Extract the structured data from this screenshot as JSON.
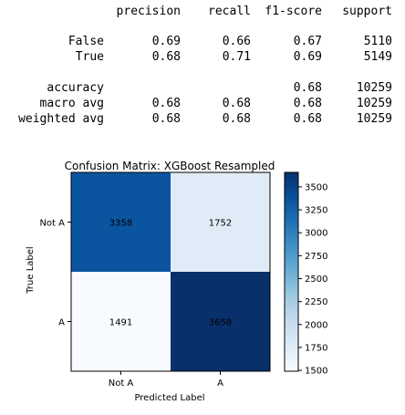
{
  "report": {
    "headers": [
      "precision",
      "recall",
      "f1-score",
      "support"
    ],
    "rows": [
      {
        "label": "False",
        "precision": "0.69",
        "recall": "0.66",
        "f1": "0.67",
        "support": "5110"
      },
      {
        "label": "True",
        "precision": "0.68",
        "recall": "0.71",
        "f1": "0.69",
        "support": "5149"
      }
    ],
    "summary": [
      {
        "label": "accuracy",
        "precision": "",
        "recall": "",
        "f1": "0.68",
        "support": "10259"
      },
      {
        "label": "macro avg",
        "precision": "0.68",
        "recall": "0.68",
        "f1": "0.68",
        "support": "10259"
      },
      {
        "label": "weighted avg",
        "precision": "0.68",
        "recall": "0.68",
        "f1": "0.68",
        "support": "10259"
      }
    ]
  },
  "chart_data": {
    "type": "heatmap",
    "title": "Confusion Matrix: XGBoost Resampled",
    "xlabel": "Predicted Label",
    "ylabel": "True Label",
    "x_categories": [
      "Not A",
      "A"
    ],
    "y_categories": [
      "Not A",
      "A"
    ],
    "values": [
      [
        3358,
        1752
      ],
      [
        1491,
        3658
      ]
    ],
    "colormap": "Blues",
    "colorbar": {
      "min": 1491,
      "max": 3658,
      "ticks": [
        1500,
        1750,
        2000,
        2250,
        2500,
        2750,
        3000,
        3250,
        3500
      ]
    },
    "colors": {
      "low": "#f7fbff",
      "high": "#08306b",
      "text_dark": "#000000",
      "text_light": "#ffffff"
    }
  }
}
